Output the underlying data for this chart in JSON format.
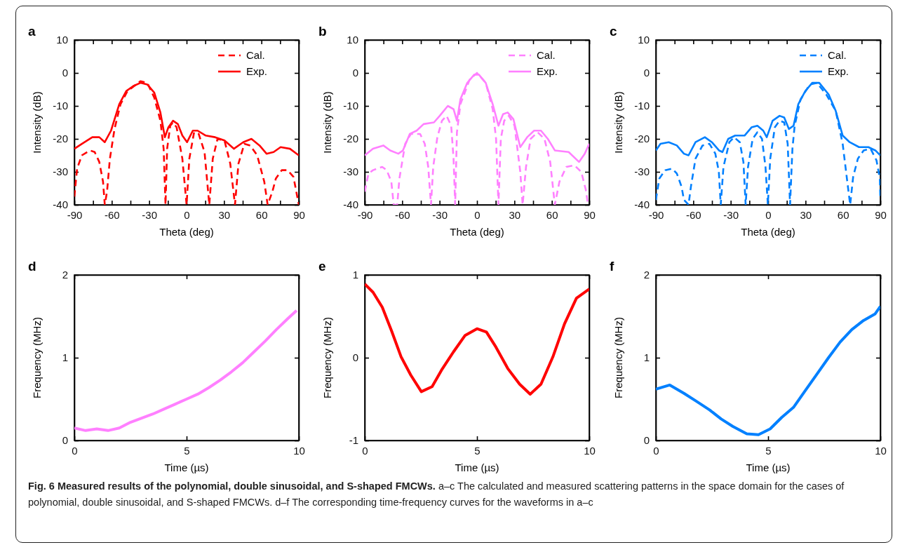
{
  "chart_data": [
    {
      "type": "line",
      "title": "a",
      "xlabel": "Theta (deg)",
      "ylabel": "Intensity (dB)",
      "xlim": [
        -90,
        90
      ],
      "ylim": [
        -40,
        10
      ],
      "xticks": [
        -90,
        {
          "value": -75,
          "label": null
        },
        -60,
        {
          "value": -45,
          "label": null
        },
        -30,
        {
          "value": -15,
          "label": null
        },
        0,
        {
          "value": 15,
          "label": null
        },
        30,
        {
          "value": 45,
          "label": null
        },
        60,
        {
          "value": 75,
          "label": null
        },
        90
      ],
      "yticks": [
        -40,
        -30,
        -20,
        -10,
        0,
        10
      ],
      "legend": "top right",
      "series": [
        {
          "name": "Cal.",
          "color": "#ff0000",
          "line_style": "dashed",
          "x": [
            -90,
            -87.8,
            -84,
            -77.4,
            -73.7,
            -70,
            -67,
            -65.6,
            -63.8,
            -61.5,
            -57.8,
            -53,
            -47.4,
            -37,
            -31.5,
            -25.9,
            -21,
            -18.4,
            -16.9,
            -15.6,
            -13.1,
            -10.9,
            -8,
            -3.4,
            0,
            2.2,
            6,
            9.7,
            14.4,
            18.2,
            21,
            24.8,
            30.4,
            35,
            38.8,
            41.6,
            46.3,
            51,
            56.6,
            62.3,
            65,
            68.8,
            71.6,
            76.3,
            81,
            85.7,
            90
          ],
          "values": [
            -37.5,
            -29,
            -25,
            -23.5,
            -24,
            -27,
            -33,
            -40,
            -36,
            -26,
            -17,
            -9.5,
            -5.5,
            -2.5,
            -3,
            -7.5,
            -14.5,
            -23,
            -40,
            -23,
            -16,
            -15,
            -16.5,
            -26,
            -40,
            -26,
            -18,
            -18.5,
            -24,
            -40,
            -26,
            -20,
            -20.5,
            -27.5,
            -40,
            -27.5,
            -21.5,
            -22,
            -25,
            -33,
            -40,
            -36,
            -32,
            -29.5,
            -29.5,
            -31.5,
            -40
          ]
        },
        {
          "name": "Exp.",
          "color": "#ff0000",
          "line_style": "solid",
          "x": [
            -90,
            -84,
            -75.6,
            -70,
            -65.6,
            -60.6,
            -54,
            -48.4,
            -42.8,
            -37,
            -31.5,
            -25.9,
            -21,
            -17.4,
            -14.6,
            -10.9,
            -7,
            -3.4,
            0.4,
            5,
            8.8,
            15.4,
            22.9,
            30.4,
            37.9,
            45.4,
            52,
            58.5,
            64.1,
            69.8,
            75.4,
            82.9,
            90
          ],
          "values": [
            -23,
            -21.5,
            -19.5,
            -19.5,
            -21,
            -17.5,
            -9.5,
            -5.5,
            -4,
            -3,
            -3.5,
            -6,
            -12,
            -19.5,
            -16.5,
            -14.5,
            -15.5,
            -19,
            -21,
            -17.5,
            -17.5,
            -19,
            -19.5,
            -20.5,
            -23,
            -21,
            -20,
            -22,
            -24.5,
            -24,
            -22.5,
            -23,
            -25
          ]
        }
      ]
    },
    {
      "type": "line",
      "title": "b",
      "xlabel": "Theta (deg)",
      "ylabel": "Intensity (dB)",
      "xlim": [
        -90,
        90
      ],
      "ylim": [
        -40,
        10
      ],
      "xticks": [
        -90,
        {
          "value": -75,
          "label": null
        },
        -60,
        {
          "value": -45,
          "label": null
        },
        -30,
        {
          "value": -15,
          "label": null
        },
        0,
        {
          "value": 15,
          "label": null
        },
        30,
        {
          "value": 45,
          "label": null
        },
        60,
        {
          "value": 75,
          "label": null
        },
        90
      ],
      "yticks": [
        -40,
        -30,
        -20,
        -10,
        0,
        10
      ],
      "legend": "top right",
      "series": [
        {
          "name": "Cal.",
          "color": "#ff80ff",
          "line_style": "dashed",
          "x": [
            -90,
            -87,
            -83.4,
            -76,
            -72.4,
            -68.7,
            -66.8,
            -64,
            -62.2,
            -57.6,
            -53,
            -45.6,
            -41.9,
            -39.1,
            -36.9,
            -35.1,
            -31.8,
            -28.1,
            -24.4,
            -20.7,
            -18.8,
            -17.5,
            -16.1,
            -13.3,
            -5.9,
            0,
            7,
            12.6,
            15.3,
            17.2,
            19.1,
            21.8,
            25.5,
            30.1,
            34.7,
            36.6,
            39.3,
            43,
            48.6,
            54.1,
            58.7,
            62.4,
            66.1,
            71.6,
            78.1,
            83.6,
            87.3,
            89
          ],
          "values": [
            -36,
            -30.5,
            -29.5,
            -28.5,
            -29.5,
            -33,
            -40,
            -40,
            -32,
            -21.5,
            -18.5,
            -18.5,
            -21.5,
            -28.5,
            -40,
            -28.5,
            -19.5,
            -14.5,
            -13,
            -16,
            -26,
            -40,
            -18,
            -9.5,
            -2,
            0,
            -3,
            -11,
            -20,
            -40,
            -20,
            -14.5,
            -13,
            -16,
            -30,
            -40,
            -28.5,
            -20,
            -18,
            -20,
            -27,
            -40,
            -33,
            -28.5,
            -28,
            -30,
            -35.5,
            -40
          ]
        },
        {
          "name": "Exp.",
          "color": "#ff80ff",
          "line_style": "solid",
          "x": [
            -90,
            -83.4,
            -75.1,
            -69.6,
            -63.1,
            -59.4,
            -53.9,
            -48.4,
            -42.8,
            -34.5,
            -29.9,
            -23.4,
            -18.8,
            -16.1,
            -13.3,
            -7.8,
            -2.2,
            1.5,
            7,
            12.6,
            17.2,
            20.9,
            24.6,
            29.2,
            34.7,
            40.2,
            45.8,
            51.3,
            56.8,
            62.4,
            73.5,
            81.8,
            86.4,
            90
          ],
          "values": [
            -25,
            -23,
            -22,
            -23.5,
            -24.5,
            -23.5,
            -18.5,
            -17.5,
            -15.5,
            -15,
            -13,
            -10,
            -11,
            -14.5,
            -8,
            -3,
            -0.5,
            -0.5,
            -3,
            -9.5,
            -16,
            -12.5,
            -12,
            -14,
            -22.5,
            -19.5,
            -17.5,
            -17.5,
            -20,
            -23.5,
            -24,
            -27,
            -24.5,
            -21.5
          ]
        }
      ]
    },
    {
      "type": "line",
      "title": "c",
      "xlabel": "Theta (deg)",
      "ylabel": "Intensity (dB)",
      "xlim": [
        -90,
        90
      ],
      "ylim": [
        -40,
        10
      ],
      "xticks": [
        -90,
        {
          "value": -75,
          "label": null
        },
        -60,
        {
          "value": -45,
          "label": null
        },
        -30,
        {
          "value": -15,
          "label": null
        },
        0,
        {
          "value": 15,
          "label": null
        },
        30,
        {
          "value": 45,
          "label": null
        },
        60,
        {
          "value": 75,
          "label": null
        },
        90
      ],
      "yticks": [
        -40,
        -30,
        -20,
        -10,
        0,
        10
      ],
      "legend": "top right",
      "series": [
        {
          "name": "Cal.",
          "color": "#0080ff",
          "line_style": "dashed",
          "x": [
            -90,
            -87.2,
            -82.5,
            -76.9,
            -73.2,
            -69.4,
            -67.5,
            -63.8,
            -61.9,
            -58.2,
            -52.6,
            -47,
            -42.3,
            -39.5,
            -38,
            -35.8,
            -31.1,
            -27.3,
            -22.7,
            -19.8,
            -18,
            -16.1,
            -12.4,
            -8.6,
            -4.9,
            -2.1,
            -0.2,
            1.7,
            5.4,
            9.2,
            12.9,
            15.7,
            17.6,
            19.5,
            21.3,
            26,
            33.5,
            39.1,
            46.6,
            54.2,
            59.8,
            63.5,
            65.8,
            68.2,
            72,
            76.6,
            82.2,
            86.9,
            89.6,
            90
          ],
          "values": [
            -38.5,
            -32,
            -29.5,
            -29,
            -30.5,
            -34.5,
            -38.5,
            -40,
            -34.5,
            -26,
            -22,
            -21.5,
            -24.5,
            -30,
            -40,
            -28.5,
            -21,
            -19.5,
            -21,
            -27,
            -40,
            -28.5,
            -20,
            -18,
            -20,
            -28.5,
            -40,
            -26,
            -16.5,
            -14.5,
            -15,
            -21.5,
            -40,
            -23,
            -16,
            -8,
            -3.5,
            -3,
            -6.5,
            -11.5,
            -21.5,
            -33,
            -40,
            -31.5,
            -26,
            -23.5,
            -23,
            -26.5,
            -32,
            -38.5
          ]
        },
        {
          "name": "Exp.",
          "color": "#0080ff",
          "line_style": "solid",
          "x": [
            -90,
            -86.3,
            -79.7,
            -73.2,
            -67.5,
            -63.8,
            -58.2,
            -50.7,
            -45.1,
            -39.4,
            -36.6,
            -32,
            -26.4,
            -18.9,
            -13.3,
            -8.6,
            -3.9,
            -1.1,
            3.6,
            9.2,
            12.9,
            16.7,
            20.4,
            24.2,
            29.8,
            35.4,
            41,
            48.5,
            54.2,
            59.8,
            65.4,
            72.9,
            80.4,
            86,
            90
          ],
          "values": [
            -23.5,
            -21.5,
            -21,
            -22,
            -24.5,
            -25,
            -21,
            -19.5,
            -21,
            -23.5,
            -24,
            -20,
            -19,
            -19,
            -16.5,
            -16,
            -17.5,
            -19.5,
            -14.5,
            -13,
            -13.5,
            -17,
            -16,
            -9.5,
            -5.5,
            -3,
            -3,
            -6.5,
            -11.5,
            -19,
            -21,
            -22.5,
            -22.5,
            -23.5,
            -25
          ]
        }
      ]
    },
    {
      "type": "line",
      "title": "d",
      "xlabel": "Time (µs)",
      "ylabel": "Frequency (MHz)",
      "xlim": [
        0,
        10
      ],
      "ylim": [
        0,
        2
      ],
      "xticks": [
        0,
        5,
        10
      ],
      "yticks": [
        0,
        1,
        2
      ],
      "series": [
        {
          "color": "#ff80ff",
          "x": [
            0,
            0.5,
            1,
            1.5,
            2,
            2.5,
            3,
            3.5,
            4,
            4.5,
            5,
            5.5,
            6,
            6.5,
            7,
            7.5,
            8,
            8.5,
            9,
            9.5,
            9.9
          ],
          "values": [
            0.15,
            0.12,
            0.14,
            0.12,
            0.15,
            0.22,
            0.27,
            0.32,
            0.38,
            0.44,
            0.5,
            0.56,
            0.64,
            0.73,
            0.83,
            0.94,
            1.07,
            1.2,
            1.34,
            1.47,
            1.57
          ]
        }
      ]
    },
    {
      "type": "line",
      "title": "e",
      "xlabel": "Time (µs)",
      "ylabel": "Frequency (MHz)",
      "xlim": [
        0,
        10
      ],
      "ylim": [
        -1,
        1
      ],
      "xticks": [
        0,
        5,
        10
      ],
      "yticks": [
        -1,
        0,
        1
      ],
      "series": [
        {
          "color": "#ff0000",
          "x": [
            0,
            0.37,
            0.78,
            1.2,
            1.62,
            2.05,
            2.52,
            3,
            3.42,
            3.95,
            4.47,
            5,
            5.42,
            5.84,
            6.37,
            6.9,
            7.37,
            7.85,
            8.38,
            8.9,
            9.43,
            10
          ],
          "values": [
            0.89,
            0.79,
            0.61,
            0.32,
            0.01,
            -0.21,
            -0.41,
            -0.35,
            -0.15,
            0.07,
            0.27,
            0.35,
            0.31,
            0.13,
            -0.13,
            -0.32,
            -0.44,
            -0.32,
            0.01,
            0.41,
            0.72,
            0.83
          ]
        }
      ]
    },
    {
      "type": "line",
      "title": "f",
      "xlabel": "Time (µs)",
      "ylabel": "Frequency (MHz)",
      "xlim": [
        0,
        10
      ],
      "ylim": [
        0,
        2
      ],
      "xticks": [
        0,
        5,
        10
      ],
      "yticks": [
        0,
        1,
        2
      ],
      "series": [
        {
          "color": "#0080ff",
          "x": [
            0,
            0.62,
            1.25,
            1.77,
            2.39,
            2.91,
            3.43,
            4.05,
            4.57,
            5.09,
            5.61,
            6.13,
            6.65,
            7.17,
            7.69,
            8.21,
            8.73,
            9.25,
            9.77,
            10
          ],
          "values": [
            0.62,
            0.67,
            0.57,
            0.48,
            0.37,
            0.26,
            0.17,
            0.08,
            0.07,
            0.14,
            0.28,
            0.4,
            0.6,
            0.8,
            1,
            1.19,
            1.34,
            1.45,
            1.53,
            1.62
          ]
        }
      ]
    },
    {
      "type": "other",
      "title": "Fig. 6 Measured results of the polynomial, double sinusoidal, and S-shaped FMCWs.",
      "annotations": [
        "a–c The calculated and measured scattering patterns in the space domain for the cases of polynomial, double sinusoidal, and S-shaped FMCWs.",
        "d–f The corresponding time-frequency curves for the waveforms in a–c"
      ]
    }
  ]
}
